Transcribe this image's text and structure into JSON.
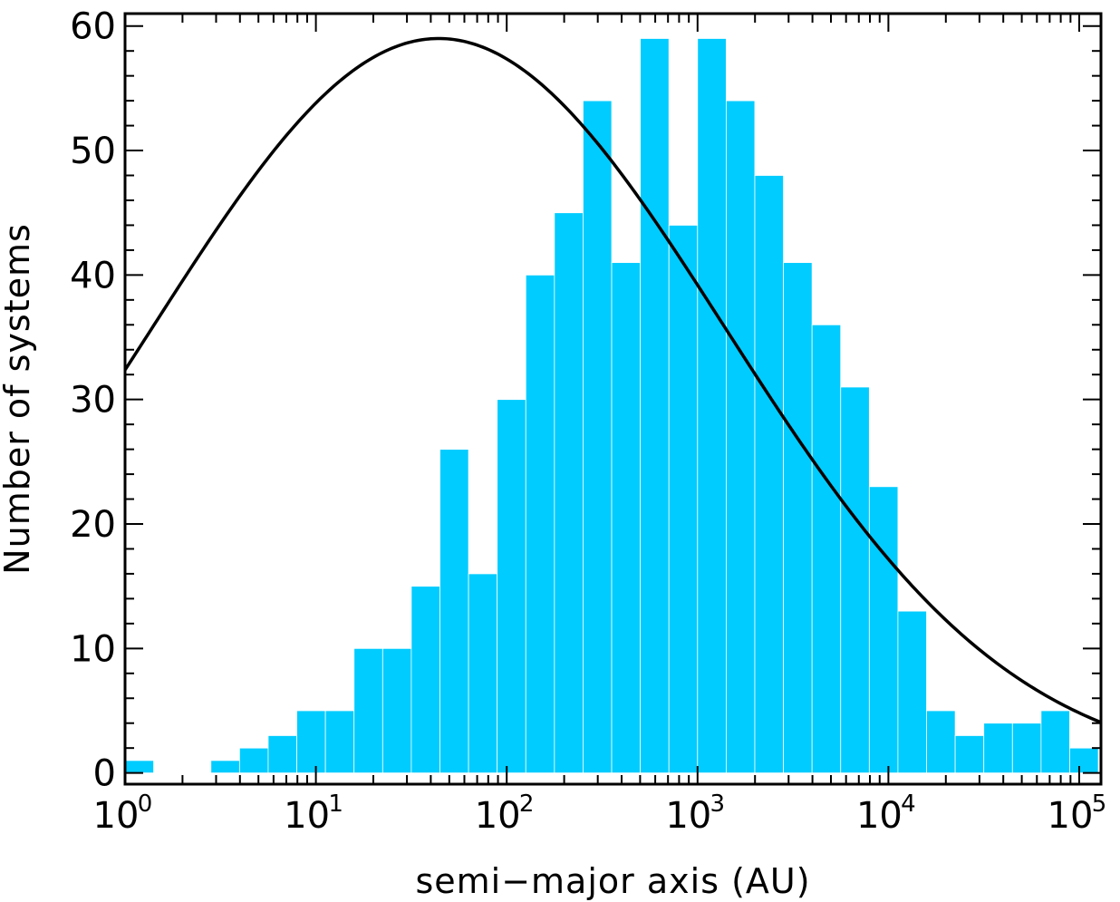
{
  "chart_data": {
    "type": "bar",
    "title": "",
    "xlabel": "semi−major axis (AU)",
    "ylabel": "Number of systems",
    "x_scale": "log",
    "xlim": [
      1,
      130000
    ],
    "ylim": [
      -0.9,
      61
    ],
    "bar_color": "#00CCFF",
    "curve_color": "#000000",
    "x_ticks": [
      {
        "base": "10",
        "exp": "0",
        "value": 1
      },
      {
        "base": "10",
        "exp": "1",
        "value": 10
      },
      {
        "base": "10",
        "exp": "2",
        "value": 100
      },
      {
        "base": "10",
        "exp": "3",
        "value": 1000
      },
      {
        "base": "10",
        "exp": "4",
        "value": 10000
      },
      {
        "base": "10",
        "exp": "5",
        "value": 100000
      }
    ],
    "y_ticks": [
      {
        "label": "0",
        "value": 0
      },
      {
        "label": "10",
        "value": 10
      },
      {
        "label": "20",
        "value": 20
      },
      {
        "label": "30",
        "value": 30
      },
      {
        "label": "40",
        "value": 40
      },
      {
        "label": "50",
        "value": 50
      },
      {
        "label": "60",
        "value": 60
      }
    ],
    "bins": {
      "log10_start": 0.0,
      "log10_width": 0.15,
      "counts": [
        1,
        0,
        0,
        1,
        2,
        3,
        5,
        5,
        10,
        10,
        15,
        26,
        16,
        30,
        40,
        45,
        54,
        41,
        59,
        44,
        59,
        54,
        48,
        41,
        36,
        31,
        23,
        13,
        5,
        3,
        4,
        4,
        5,
        2
      ]
    },
    "curve": {
      "label": "",
      "peak_x": 44,
      "peak_y": 59,
      "sigma_log10": 1.5,
      "points": [
        {
          "x": 1,
          "y": 33
        },
        {
          "x": 2,
          "y": 42
        },
        {
          "x": 5,
          "y": 51
        },
        {
          "x": 10,
          "y": 55.5
        },
        {
          "x": 44,
          "y": 59
        },
        {
          "x": 100,
          "y": 57.5
        },
        {
          "x": 300,
          "y": 52
        },
        {
          "x": 1000,
          "y": 42
        },
        {
          "x": 3000,
          "y": 30
        },
        {
          "x": 10000,
          "y": 17
        },
        {
          "x": 30000,
          "y": 10
        },
        {
          "x": 130000,
          "y": 4.4
        }
      ]
    }
  }
}
